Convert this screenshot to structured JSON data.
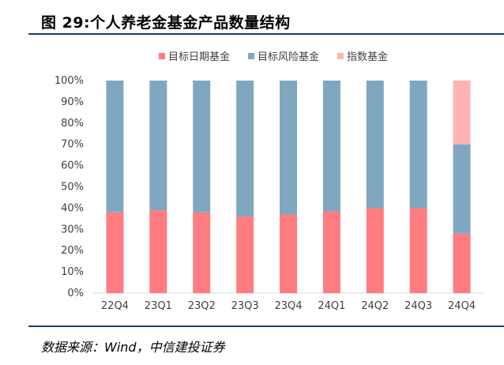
{
  "figure": {
    "title": "图 29:个人养老金基金产品数量结构",
    "source": "数据来源：Wind，中信建投证券"
  },
  "chart_data": {
    "type": "bar",
    "stacked": true,
    "percent": true,
    "categories": [
      "22Q4",
      "23Q1",
      "23Q2",
      "23Q3",
      "23Q4",
      "24Q1",
      "24Q2",
      "24Q3",
      "24Q4"
    ],
    "series": [
      {
        "name": "目标日期基金",
        "color": "#ff7c80",
        "values": [
          38,
          39,
          38,
          36,
          37,
          38.5,
          40,
          40,
          28
        ]
      },
      {
        "name": "目标风险基金",
        "color": "#7fa7c0",
        "values": [
          62,
          61,
          62,
          64,
          63,
          61.5,
          60,
          60,
          42
        ]
      },
      {
        "name": "指数基金",
        "color": "#ffb3b3",
        "values": [
          0,
          0,
          0,
          0,
          0,
          0,
          0,
          0,
          30
        ]
      }
    ],
    "yticks": [
      "0%",
      "10%",
      "20%",
      "30%",
      "40%",
      "50%",
      "60%",
      "70%",
      "80%",
      "90%",
      "100%"
    ],
    "ylim": [
      0,
      100
    ],
    "legend": "top-center",
    "grid": false
  }
}
